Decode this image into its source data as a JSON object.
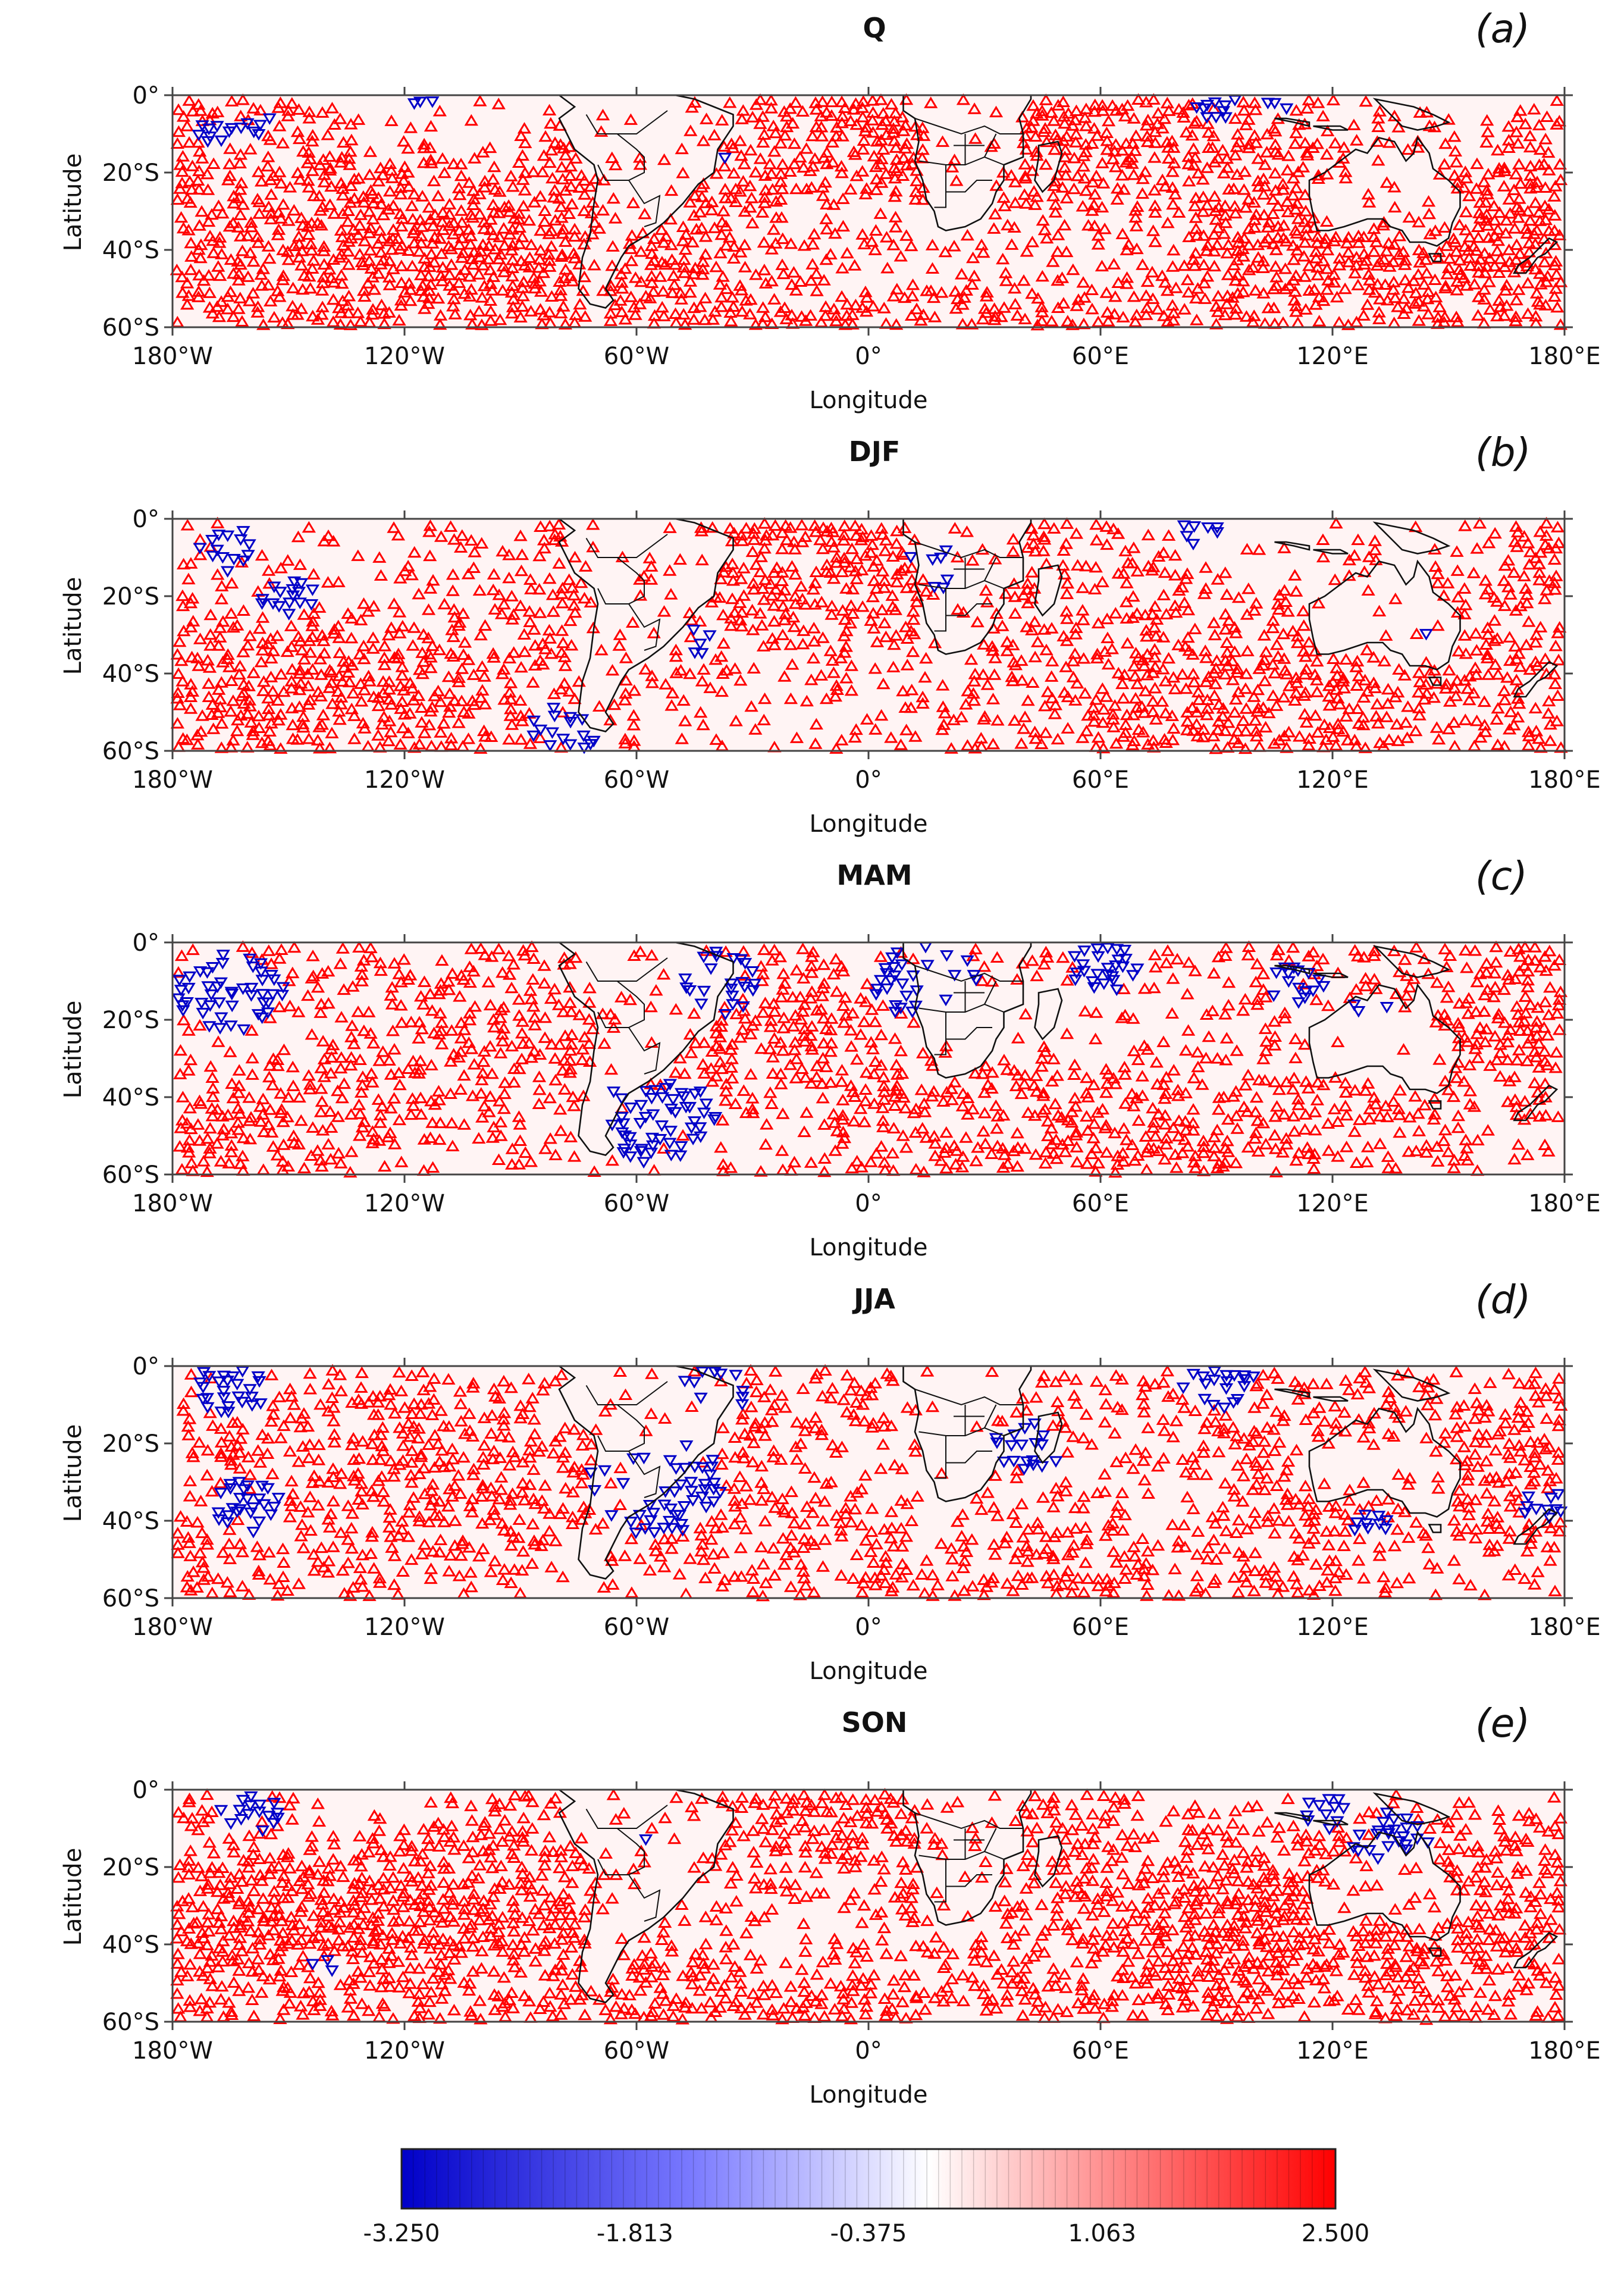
{
  "figure": {
    "axis_xlabel": "Longitude",
    "axis_ylabel": "Latitude",
    "lon_ticks": [
      "180°W",
      "120°W",
      "60°W",
      "0°",
      "60°E",
      "120°E",
      "180°E"
    ],
    "lat_ticks": [
      "0°",
      "20°S",
      "40°S",
      "60°S"
    ]
  },
  "panels": [
    {
      "title": "Q",
      "tag": "(a)",
      "density": 0.82,
      "neg": [
        [
          -160,
          -7,
          6
        ],
        [
          -170,
          -10,
          5
        ],
        [
          -115,
          0,
          3
        ],
        [
          -40,
          -15,
          4
        ],
        [
          90,
          -2,
          6
        ],
        [
          105,
          -1,
          4
        ]
      ]
    },
    {
      "title": "DJF",
      "tag": "(b)",
      "density": 0.62,
      "neg": [
        [
          -165,
          -7,
          8
        ],
        [
          -150,
          -20,
          8
        ],
        [
          -45,
          -30,
          6
        ],
        [
          20,
          -10,
          10
        ],
        [
          85,
          -2,
          6
        ],
        [
          140,
          -30,
          5
        ],
        [
          -80,
          -55,
          10
        ]
      ]
    },
    {
      "title": "MAM",
      "tag": "(c)",
      "density": 0.55,
      "neg": [
        [
          -165,
          -12,
          14
        ],
        [
          -55,
          -45,
          16
        ],
        [
          -40,
          -10,
          12
        ],
        [
          15,
          -10,
          14
        ],
        [
          60,
          -5,
          10
        ],
        [
          110,
          -10,
          8
        ],
        [
          130,
          -18,
          6
        ]
      ]
    },
    {
      "title": "JJA",
      "tag": "(d)",
      "density": 0.55,
      "neg": [
        [
          -165,
          -5,
          10
        ],
        [
          -160,
          -35,
          10
        ],
        [
          -55,
          -30,
          18
        ],
        [
          -40,
          -5,
          10
        ],
        [
          40,
          -20,
          10
        ],
        [
          90,
          -3,
          10
        ],
        [
          130,
          -40,
          6
        ],
        [
          175,
          -35,
          6
        ]
      ]
    },
    {
      "title": "SON",
      "tag": "(e)",
      "density": 0.82,
      "neg": [
        [
          -160,
          -5,
          8
        ],
        [
          -60,
          -10,
          4
        ],
        [
          135,
          -12,
          10
        ],
        [
          118,
          -5,
          6
        ],
        [
          -140,
          -45,
          4
        ]
      ]
    }
  ],
  "colorbar": {
    "min": -3.25,
    "max": 2.5,
    "labels": [
      "-3.250",
      "-1.813",
      "-0.375",
      "1.063",
      "2.500"
    ],
    "neg_color": "#0000c8",
    "pos_color": "#ff0000",
    "mid_color": "#ffffff"
  }
}
